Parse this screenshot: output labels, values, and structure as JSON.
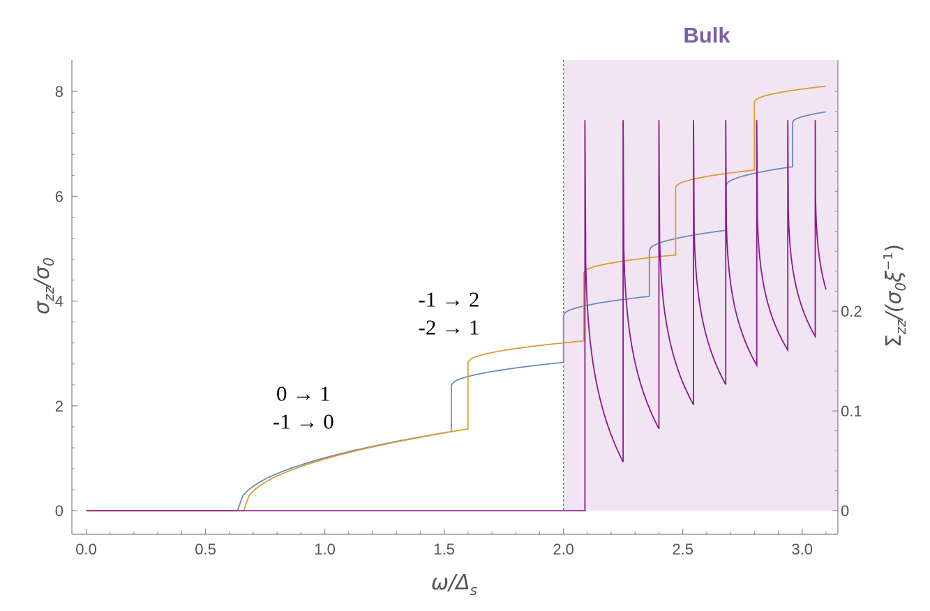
{
  "chart_data": {
    "type": "line",
    "x_label": "ω/Δ",
    "x_label_sub": "s",
    "y_left_label": "σ",
    "y_left_label_sub": "zz",
    "y_left_label_mid": "/σ",
    "y_left_label_sub2": "0",
    "y_right_label": "Σ",
    "y_right_label_sub": "zz",
    "y_right_label_mid": "/(σ",
    "y_right_label_sub2": "0",
    "y_right_label_tail": "ξ",
    "y_right_label_sup": "−1",
    "y_right_label_end": ")",
    "x_range": [
      -0.06,
      3.15
    ],
    "y_left_range": [
      -0.45,
      8.6
    ],
    "y_right_range": [
      -0.0236,
      0.4516
    ],
    "x_ticks": [
      {
        "value": 0.0,
        "label": "0.0"
      },
      {
        "value": 0.5,
        "label": "0.5"
      },
      {
        "value": 1.0,
        "label": "1.0"
      },
      {
        "value": 1.5,
        "label": "1.5"
      },
      {
        "value": 2.0,
        "label": "2.0"
      },
      {
        "value": 2.5,
        "label": "2.5"
      },
      {
        "value": 3.0,
        "label": "3.0"
      }
    ],
    "y_left_ticks": [
      {
        "value": 0,
        "label": "0"
      },
      {
        "value": 2,
        "label": "2"
      },
      {
        "value": 4,
        "label": "4"
      },
      {
        "value": 6,
        "label": "6"
      },
      {
        "value": 8,
        "label": "8"
      }
    ],
    "y_right_ticks": [
      {
        "value": 0,
        "label": "0"
      },
      {
        "value": 0.1,
        "label": "0.1"
      },
      {
        "value": 0.2,
        "label": "0.2"
      }
    ],
    "bulk_region": {
      "x_start": 2.0,
      "x_end": 3.15,
      "label": "Bulk",
      "color": "#7b5ea7",
      "fill": "#f1e4f3"
    },
    "annotations": [
      {
        "lines": [
          "0 → 1",
          "-1 → 0"
        ],
        "x": 0.91,
        "y": 2.23
      },
      {
        "lines": [
          "-1 → 2",
          "-2 → 1"
        ],
        "x": 1.52,
        "y": 4.03
      }
    ],
    "series": [
      {
        "color": "#6b8cbe",
        "axis": "left",
        "steps": [
          {
            "start": 0.634,
            "end": 1.53,
            "a": 0.0,
            "b": 1.0
          },
          {
            "start": 1.53,
            "end": 2.0,
            "a": 2.39,
            "b": 2.83
          },
          {
            "start": 2.0,
            "end": 2.36,
            "a": 3.73,
            "b": 4.09
          },
          {
            "start": 2.36,
            "end": 2.68,
            "a": 4.97,
            "b": 5.35
          },
          {
            "start": 2.68,
            "end": 2.94,
            "a": 6.2,
            "b": 6.55
          },
          {
            "start": 2.94,
            "end": 2.96,
            "a": 6.55,
            "b": 6.56
          },
          {
            "start": 2.96,
            "end": 3.1,
            "a": 7.41,
            "b": 7.61
          }
        ],
        "smooth_start": {
          "x0": 0.634,
          "x1": 1.53,
          "y1": 1.51
        }
      },
      {
        "color": "#e09c2e",
        "axis": "left",
        "steps": [
          {
            "start": 0.66,
            "end": 1.6,
            "a": 0.0,
            "b": 1.0
          },
          {
            "start": 1.6,
            "end": 2.085,
            "a": 2.83,
            "b": 3.24
          },
          {
            "start": 2.085,
            "end": 2.47,
            "a": 4.54,
            "b": 4.88
          },
          {
            "start": 2.47,
            "end": 2.8,
            "a": 6.17,
            "b": 6.5
          },
          {
            "start": 2.8,
            "end": 3.1,
            "a": 7.8,
            "b": 8.1
          }
        ],
        "smooth_start": {
          "x0": 0.66,
          "x1": 1.6,
          "y1": 1.56
        }
      },
      {
        "color": "#8a1a8f",
        "axis": "right",
        "peaks": [
          2.09,
          2.25,
          2.4,
          2.545,
          2.68,
          2.81,
          2.94,
          3.055
        ],
        "peak_value": 0.3913,
        "minima": [
          0.0488,
          0.0822,
          0.1062,
          0.1265,
          0.1457,
          0.1611,
          0.1746,
          0.2217
        ],
        "end_x": 3.1,
        "zero_until": 2.09
      }
    ]
  }
}
